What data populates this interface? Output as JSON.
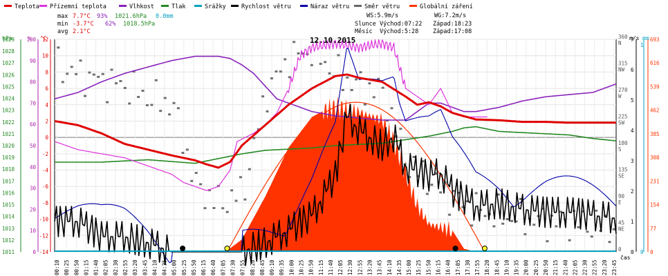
{
  "legend": [
    {
      "label": "Teplota",
      "color": "#e00000"
    },
    {
      "label": "Přízemní teplota",
      "color": "#dd33dd"
    },
    {
      "label": "Vlhkost",
      "color": "#8822bb"
    },
    {
      "label": "Tlak",
      "color": "#228822"
    },
    {
      "label": "Srážky",
      "color": "#00a0c0"
    },
    {
      "label": "Rychlost větru",
      "color": "#000000"
    },
    {
      "label": "Náraz větru",
      "color": "#0000aa"
    },
    {
      "label": "Směr větru",
      "color": "#666666"
    },
    {
      "label": "Globální záření",
      "color": "#ff3300"
    }
  ],
  "stats": {
    "max_label": "max",
    "max_temp": "7.7°C",
    "max_hum": "93%",
    "max_press": "1021.6hPa",
    "max_rain": "0.0mm",
    "min_label": "min",
    "min_temp": "-3.7°C",
    "min_hum": "62%",
    "min_press": "1018.5hPa",
    "avg_label": "avg",
    "avg_temp": "2.1°C"
  },
  "wind_info": {
    "ws": "WS:5.9m/s",
    "wg": "WG:7.2m/s"
  },
  "sun_info": {
    "label": "Slunce",
    "rise": "Východ:07:22",
    "set": "Západ:18:23"
  },
  "moon_info": {
    "label": "Měsíc",
    "rise": "Východ:5:28",
    "set": "Západ:17:08"
  },
  "date": "12.10.2015",
  "axis_units": {
    "hpa": "hPa",
    "pct": "%",
    "degc": "°C",
    "ms": "m/s",
    "mm": "mm",
    "time": "čas"
  },
  "chart_data": {
    "type": "line",
    "title": "12.10.2015",
    "x_range": [
      0,
      24
    ],
    "x_ticks": [
      "00:10",
      "00:25",
      "00:50",
      "01:15",
      "01:40",
      "02:05",
      "02:30",
      "02:55",
      "03:20",
      "03:45",
      "04:10",
      "04:35",
      "05:00",
      "05:25",
      "05:50",
      "06:15",
      "06:40",
      "07:05",
      "07:30",
      "07:55",
      "08:20",
      "08:45",
      "09:10",
      "09:35",
      "10:00",
      "10:25",
      "10:50",
      "11:15",
      "11:40",
      "12:05",
      "12:30",
      "12:55",
      "13:20",
      "13:45",
      "14:10",
      "14:35",
      "15:00",
      "15:25",
      "15:50",
      "16:15",
      "16:40",
      "17:05",
      "17:30",
      "17:55",
      "18:20",
      "18:45",
      "19:10",
      "19:35",
      "20:00",
      "20:25",
      "20:50",
      "21:15",
      "21:40",
      "22:05",
      "22:30",
      "22:55",
      "23:20",
      "23:45"
    ],
    "axes": {
      "pressure_hpa": {
        "range": [
          1011,
          1029
        ],
        "ticks": [
          "1011",
          "1012",
          "1013",
          "1014",
          "1015",
          "1016",
          "1017",
          "1018",
          "1019",
          "1020",
          "1021",
          "1022",
          "1023",
          "1024",
          "1025",
          "1026",
          "1027",
          "1028",
          "1029"
        ]
      },
      "humidity_pct": {
        "range": [
          0,
          100
        ],
        "ticks": [
          "0",
          "10",
          "20",
          "30",
          "40",
          "50",
          "60",
          "70",
          "80",
          "90",
          "100"
        ]
      },
      "temperature_c": {
        "range": [
          -14,
          12
        ],
        "ticks": [
          "-14",
          "-12",
          "-10",
          "-8",
          "-6",
          "-4",
          "-2",
          "0",
          "2",
          "4",
          "6",
          "8",
          "10",
          "12"
        ]
      },
      "wind_dir_deg": {
        "range": [
          0,
          360
        ],
        "ticks": [
          "0",
          "45 NE",
          "90 E",
          "135 SE",
          "180 S",
          "225 SW",
          "270 W",
          "315 NW",
          "360 N"
        ]
      },
      "wind_speed_ms": {
        "range": [
          0,
          7
        ],
        "ticks": [
          "0",
          "1",
          "2",
          "3",
          "4",
          "5",
          "6",
          "7"
        ]
      },
      "rain_mm": {
        "range": [
          0,
          1
        ],
        "ticks": [
          "0",
          "1"
        ]
      },
      "radiation_wm2": {
        "range": [
          0,
          693
        ],
        "ticks": [
          "0",
          "77",
          "154",
          "231",
          "308",
          "385",
          "462",
          "539",
          "616",
          "693"
        ]
      }
    },
    "series": [
      {
        "name": "Teplota",
        "unit": "°C",
        "x": [
          0,
          1,
          2,
          3,
          4,
          5,
          6,
          6.5,
          7,
          7.5,
          8,
          9,
          10,
          11,
          12,
          12.5,
          13,
          14,
          15,
          15.5,
          16,
          16.5,
          17,
          17.5,
          18,
          19,
          20,
          21,
          22,
          23,
          24
        ],
        "values": [
          2,
          1.5,
          0.5,
          -0.8,
          -1.5,
          -2.2,
          -2.8,
          -3.3,
          -3.7,
          -3,
          -1,
          1.5,
          4,
          6,
          7.5,
          7.7,
          7.3,
          6.8,
          5,
          4,
          4.3,
          3.8,
          3,
          2.6,
          2.2,
          2.1,
          1.9,
          1.9,
          1.8,
          1.8,
          1.8
        ]
      },
      {
        "name": "Přízemní teplota",
        "unit": "°C",
        "x": [
          0,
          1,
          2,
          3,
          4,
          5,
          5.5,
          6,
          6.5,
          7,
          7.5,
          7.8,
          8.5,
          9,
          9.5,
          10,
          10.5,
          11,
          12,
          13,
          14,
          14.5,
          15,
          15.5,
          16,
          16.5,
          17,
          17.5,
          18,
          18.5
        ],
        "values": [
          -0.5,
          -1.5,
          -2,
          -2.5,
          -3.5,
          -4.5,
          -5.5,
          -6,
          -6.5,
          -6,
          -4,
          -0.5,
          0.5,
          1.5,
          3,
          6,
          10,
          11,
          11.5,
          11,
          11.5,
          11,
          6,
          5,
          4,
          6,
          3,
          2.5,
          2.5,
          2.5
        ]
      },
      {
        "name": "Vlhkost",
        "unit": "%",
        "x": [
          0,
          1,
          2,
          3,
          4,
          5,
          6,
          7,
          7.5,
          8,
          8.5,
          9,
          9.5,
          10,
          11,
          12,
          13,
          14,
          15,
          15.5,
          16,
          16.5,
          17,
          17.5,
          18,
          19,
          20,
          21,
          22,
          23,
          24
        ],
        "values": [
          72,
          75,
          80,
          84,
          87,
          90,
          92,
          92,
          91,
          88,
          84,
          78,
          72,
          70,
          66,
          64,
          63,
          62,
          62,
          66,
          70,
          70,
          68,
          66,
          66,
          68,
          71,
          73,
          74,
          75,
          79
        ]
      },
      {
        "name": "Tlak",
        "unit": "hPa",
        "x": [
          0,
          2,
          4,
          6,
          6.5,
          7,
          8,
          9,
          10,
          11,
          12,
          13,
          14,
          15,
          16,
          17,
          17.5,
          18,
          18.5,
          19,
          20,
          21,
          22,
          23,
          24
        ],
        "values": [
          1018.6,
          1018.6,
          1018.8,
          1018.5,
          1018.7,
          1018.9,
          1019.3,
          1019.6,
          1019.7,
          1019.8,
          1020.0,
          1020.1,
          1020.2,
          1020.5,
          1020.8,
          1021.2,
          1021.5,
          1021.6,
          1021.4,
          1021.2,
          1021.1,
          1021.0,
          1020.9,
          1020.6,
          1020.4
        ]
      },
      {
        "name": "Srážky",
        "unit": "mm",
        "x": [
          0,
          24
        ],
        "values": [
          0,
          0
        ]
      },
      {
        "name": "Rychlost větru",
        "unit": "m/s",
        "x": [
          0,
          1,
          2,
          3,
          4,
          5,
          6,
          7,
          8,
          9,
          10,
          11,
          12,
          12.5,
          13,
          14,
          14.5,
          15,
          16,
          16.5,
          17,
          18,
          19,
          20,
          21,
          22,
          23,
          24
        ],
        "values": [
          1,
          1,
          0.5,
          0.5,
          0.3,
          0,
          0,
          0,
          0,
          0.3,
          0.7,
          1.2,
          2.5,
          4.5,
          4,
          3.5,
          3.8,
          2.8,
          2.5,
          2.6,
          2,
          1.5,
          1.6,
          1.4,
          1.3,
          1.3,
          1.2,
          1.1
        ]
      },
      {
        "name": "Náraz větru",
        "unit": "m/s",
        "x": [
          0,
          1,
          2,
          3,
          4,
          5,
          6,
          7,
          8,
          9,
          10,
          11,
          12,
          12.5,
          13,
          14,
          14.5,
          15,
          16,
          16.5,
          17,
          18,
          19,
          20,
          21,
          22,
          23,
          24
        ],
        "values": [
          1.5,
          1.2,
          0.8,
          0.7,
          0.4,
          0,
          0,
          0,
          0,
          0.5,
          1,
          2,
          3.5,
          6,
          5,
          5.5,
          6,
          4.5,
          4,
          4,
          3,
          2,
          2,
          1.8,
          1.8,
          1.7,
          1.6,
          1.5
        ]
      },
      {
        "name": "Směr větru",
        "unit": "°",
        "x": [
          0,
          1,
          2,
          3,
          4,
          5,
          6,
          7,
          8,
          9,
          10,
          11,
          12,
          13,
          14,
          15,
          16,
          17,
          18,
          19,
          20,
          21,
          22,
          23,
          24
        ],
        "values": [
          315,
          300,
          290,
          280,
          260,
          250,
          110,
          80,
          100,
          270,
          330,
          340,
          300,
          280,
          270,
          150,
          120,
          90,
          70,
          60,
          55,
          50,
          50,
          45,
          40
        ]
      },
      {
        "name": "Globální záření",
        "unit": "W/m²",
        "x": [
          7.3,
          8,
          9,
          10,
          11,
          11.5,
          12,
          13,
          14,
          14.5,
          15,
          15.5,
          16,
          16.5,
          17,
          17.5,
          18
        ],
        "values": [
          0,
          40,
          180,
          340,
          440,
          460,
          470,
          455,
          430,
          360,
          260,
          150,
          90,
          80,
          70,
          10,
          0
        ]
      }
    ],
    "theoretical_radiation": {
      "x": [
        7.37,
        18.38
      ],
      "peak": 488
    },
    "grid": true
  }
}
